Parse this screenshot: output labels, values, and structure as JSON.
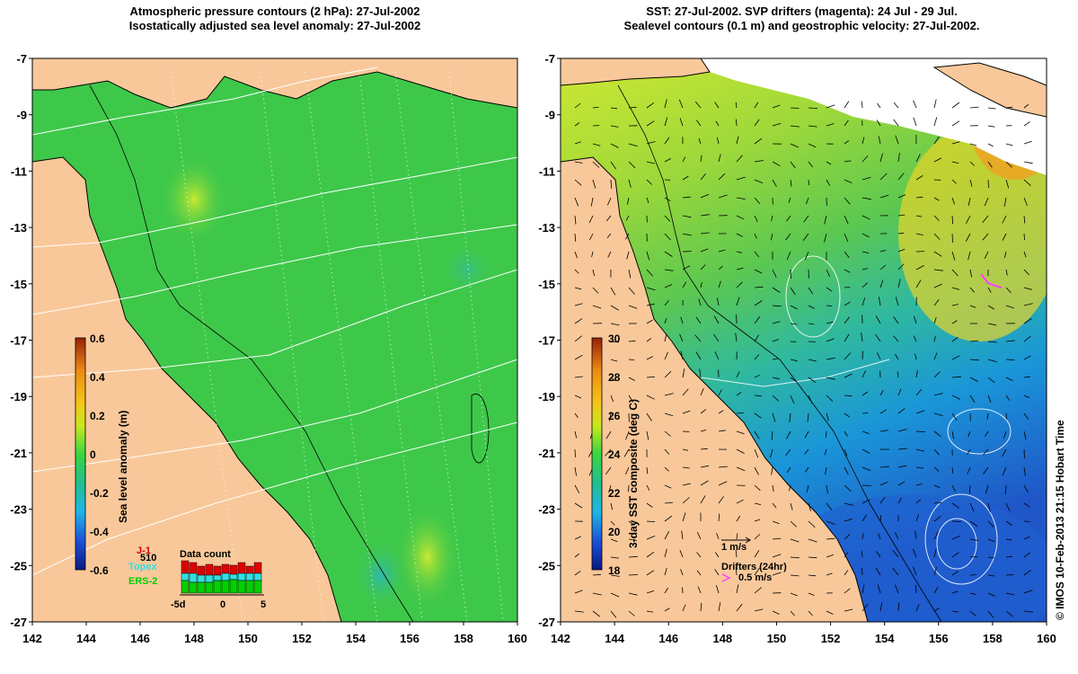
{
  "left_panel": {
    "title_line1": "Atmospheric pressure contours (2 hPa): 27-Jul-2002",
    "title_line2": "Isostatically adjusted sea level anomaly: 27-Jul-2002",
    "colorbar": {
      "label": "Sea level anomaly (m)",
      "ticks": [
        "0.6",
        "0.4",
        "0.2",
        "0",
        "-0.2",
        "-0.4",
        "-0.6"
      ],
      "colors": [
        "#0a1a80",
        "#1b4fd8",
        "#1eb6e8",
        "#22c08a",
        "#3bd640",
        "#c8e81e",
        "#f5c518",
        "#ec8a14",
        "#9a2008"
      ]
    },
    "legend": {
      "jason_label": "J-1",
      "jason_color": "#e00000",
      "topex_label": "Topex",
      "topex_color": "#30e0e0",
      "ers_label": "ERS-2",
      "ers_color": "#00d000",
      "count_label": "510",
      "data_count_title": "Data count",
      "axis_ticks": [
        "-5d",
        "0",
        "5"
      ]
    }
  },
  "right_panel": {
    "title_line1": "SST: 27-Jul-2002. SVP drifters (magenta): 24 Jul - 29 Jul.",
    "title_line2": "Sealevel contours (0.1 m) and geostrophic velocity: 27-Jul-2002.",
    "colorbar": {
      "label": "3-day SST composite (deg C)",
      "ticks": [
        "30",
        "28",
        "26",
        "24",
        "22",
        "20",
        "18"
      ],
      "colors": [
        "#0a1a80",
        "#1b4fd8",
        "#1eb6e8",
        "#22c08a",
        "#3bd640",
        "#c8e81e",
        "#f5c518",
        "#ec8a14",
        "#9a2008"
      ]
    },
    "velocity_scale_label": "1 m/s",
    "drifter_label": "Drifters (24hr)",
    "drifter_scale_label": "0.5 m/s",
    "drifter_color": "#ff40ff"
  },
  "axes": {
    "lat_ticks": [
      "-7",
      "-9",
      "-11",
      "-13",
      "-15",
      "-17",
      "-19",
      "-21",
      "-23",
      "-25",
      "-27"
    ],
    "lon_ticks": [
      "142",
      "144",
      "146",
      "148",
      "150",
      "152",
      "154",
      "156",
      "158",
      "160"
    ]
  },
  "credit": "© IMOS 10-Feb-2013 21:15 Hobart Time",
  "colors": {
    "land": "#f9c89a",
    "ocean_sla": "#3ec84a",
    "ocean_sst_warm": "#b8e03a",
    "ocean_sst_cool": "#1e8fd0"
  }
}
